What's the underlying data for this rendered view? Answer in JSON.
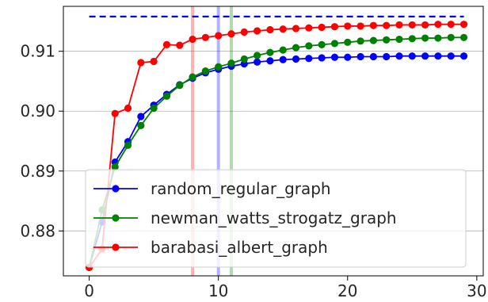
{
  "chart_data": {
    "type": "line",
    "title": "",
    "xlabel": "",
    "ylabel": "",
    "xlim": [
      -2,
      30.5
    ],
    "ylim": [
      0.8725,
      0.9175
    ],
    "x_ticks": [
      0,
      10,
      20,
      30
    ],
    "y_ticks": [
      0.88,
      0.89,
      0.9,
      0.91
    ],
    "x_tick_labels": [
      "0",
      "10",
      "20",
      "30"
    ],
    "y_tick_labels": [
      "0.88",
      "0.89",
      "0.90",
      "0.91"
    ],
    "grid": "horizontal",
    "legend_position": "lower-right",
    "series": [
      {
        "name": "random_regular_graph",
        "color": "#0000ff",
        "x": [
          0,
          1,
          2,
          3,
          4,
          5,
          6,
          7,
          8,
          9,
          10,
          11,
          12,
          13,
          14,
          15,
          16,
          17,
          18,
          19,
          20,
          21,
          22,
          23,
          24,
          25,
          26,
          27,
          28,
          29
        ],
        "values": [
          0.8739,
          0.8815,
          0.8915,
          0.8949,
          0.8991,
          0.901,
          0.9028,
          0.9044,
          0.9055,
          0.9064,
          0.907,
          0.9075,
          0.9079,
          0.9082,
          0.9084,
          0.9086,
          0.9087,
          0.9088,
          0.9089,
          0.909,
          0.909,
          0.9091,
          0.9091,
          0.9091,
          0.9092,
          0.9092,
          0.9092,
          0.9092,
          0.9092,
          0.9092
        ]
      },
      {
        "name": "newman_watts_strogatz_graph",
        "color": "#008000",
        "x": [
          0,
          1,
          2,
          3,
          4,
          5,
          6,
          7,
          8,
          9,
          10,
          11,
          12,
          13,
          14,
          15,
          16,
          17,
          18,
          19,
          20,
          21,
          22,
          23,
          24,
          25,
          26,
          27,
          28,
          29
        ],
        "values": [
          0.8739,
          0.8835,
          0.8907,
          0.8943,
          0.8976,
          0.9005,
          0.9025,
          0.9043,
          0.9057,
          0.9067,
          0.9074,
          0.908,
          0.9087,
          0.9093,
          0.9098,
          0.9102,
          0.9106,
          0.9109,
          0.9111,
          0.9113,
          0.9115,
          0.9117,
          0.9118,
          0.9119,
          0.912,
          0.9121,
          0.9122,
          0.9122,
          0.9123,
          0.9123
        ]
      },
      {
        "name": "barabasi_albert_graph",
        "color": "#ff0000",
        "x": [
          0,
          1,
          2,
          3,
          4,
          5,
          6,
          7,
          8,
          9,
          10,
          11,
          12,
          13,
          14,
          15,
          16,
          17,
          18,
          19,
          20,
          21,
          22,
          23,
          24,
          25,
          26,
          27,
          28,
          29
        ],
        "values": [
          0.8739,
          0.877,
          0.8996,
          0.9005,
          0.9081,
          0.9083,
          0.9111,
          0.911,
          0.912,
          0.9123,
          0.9126,
          0.9129,
          0.9132,
          0.9134,
          0.9136,
          0.9137,
          0.9138,
          0.9139,
          0.914,
          0.9141,
          0.9142,
          0.9142,
          0.9143,
          0.9143,
          0.9144,
          0.9144,
          0.9144,
          0.9145,
          0.9145,
          0.9145
        ]
      }
    ],
    "reference_line": {
      "y": 0.9158,
      "x_range": [
        0,
        29
      ],
      "color": "#0000ff",
      "style": "dashed"
    },
    "vertical_lines": [
      {
        "x": 8,
        "color": "#ff0000"
      },
      {
        "x": 10,
        "color": "#0000ff"
      },
      {
        "x": 11,
        "color": "#008000"
      }
    ]
  }
}
